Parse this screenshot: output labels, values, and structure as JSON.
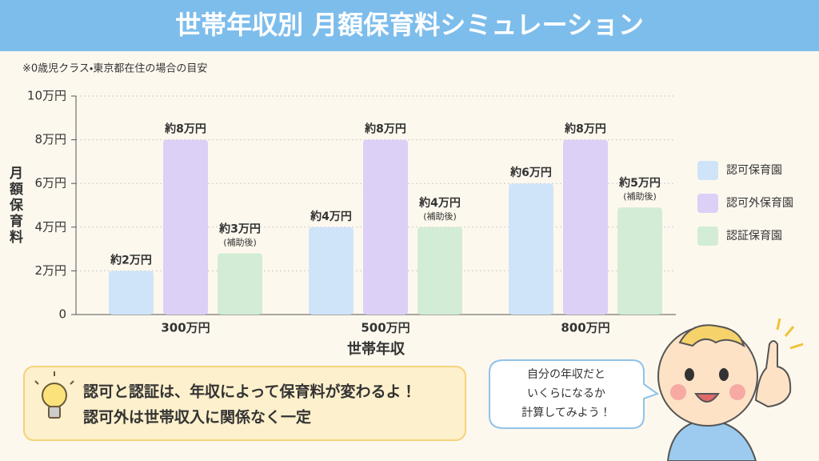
{
  "chart_data": {
    "type": "bar",
    "title": "世帯年収別 月額保育料シミュレーション",
    "subtitle": "※0歳児クラス・東京都在住の場合の目安",
    "x_label": "世帯年収",
    "y_label": "月額保育料",
    "categories": [
      "300万円",
      "500万円",
      "800万円"
    ],
    "series": [
      {
        "name": "認可保育園",
        "color": "#cfe4f8",
        "values": [
          2,
          4,
          6
        ],
        "value_labels": [
          "約2万円",
          "約4万円",
          "約6万円"
        ]
      },
      {
        "name": "認可外保育園",
        "color": "#ddd0f6",
        "values": [
          8,
          8,
          8
        ],
        "value_labels": [
          "約8万円",
          "約8万円",
          "約8万円"
        ]
      },
      {
        "name": "認証保育園",
        "color": "#d3ecd5",
        "values": [
          2.8,
          4,
          4.9
        ],
        "value_labels": [
          "約3万円",
          "約4万円",
          "約5万円"
        ],
        "value_notes": [
          "(補助後)",
          "(補助後)",
          "(補助後)"
        ]
      }
    ],
    "ylim": [
      0,
      10
    ],
    "yticks": [
      0,
      {
        "value": 2,
        "label": "2万円"
      },
      {
        "value": 4,
        "label": "4万円"
      },
      {
        "value": 6,
        "label": "6万円"
      },
      {
        "value": 8,
        "label": "8万円"
      },
      {
        "value": 10,
        "label": "10万円"
      }
    ],
    "grid": true,
    "legend": "right"
  },
  "note": {
    "lines": [
      "認可と認証は、年収によって保育料が変わるよ！",
      "認可外は世帯収入に関係なく一定"
    ]
  },
  "speech_bubble": {
    "lines": [
      "自分の年収だと",
      "いくらになるか",
      "計算してみよう！"
    ]
  }
}
